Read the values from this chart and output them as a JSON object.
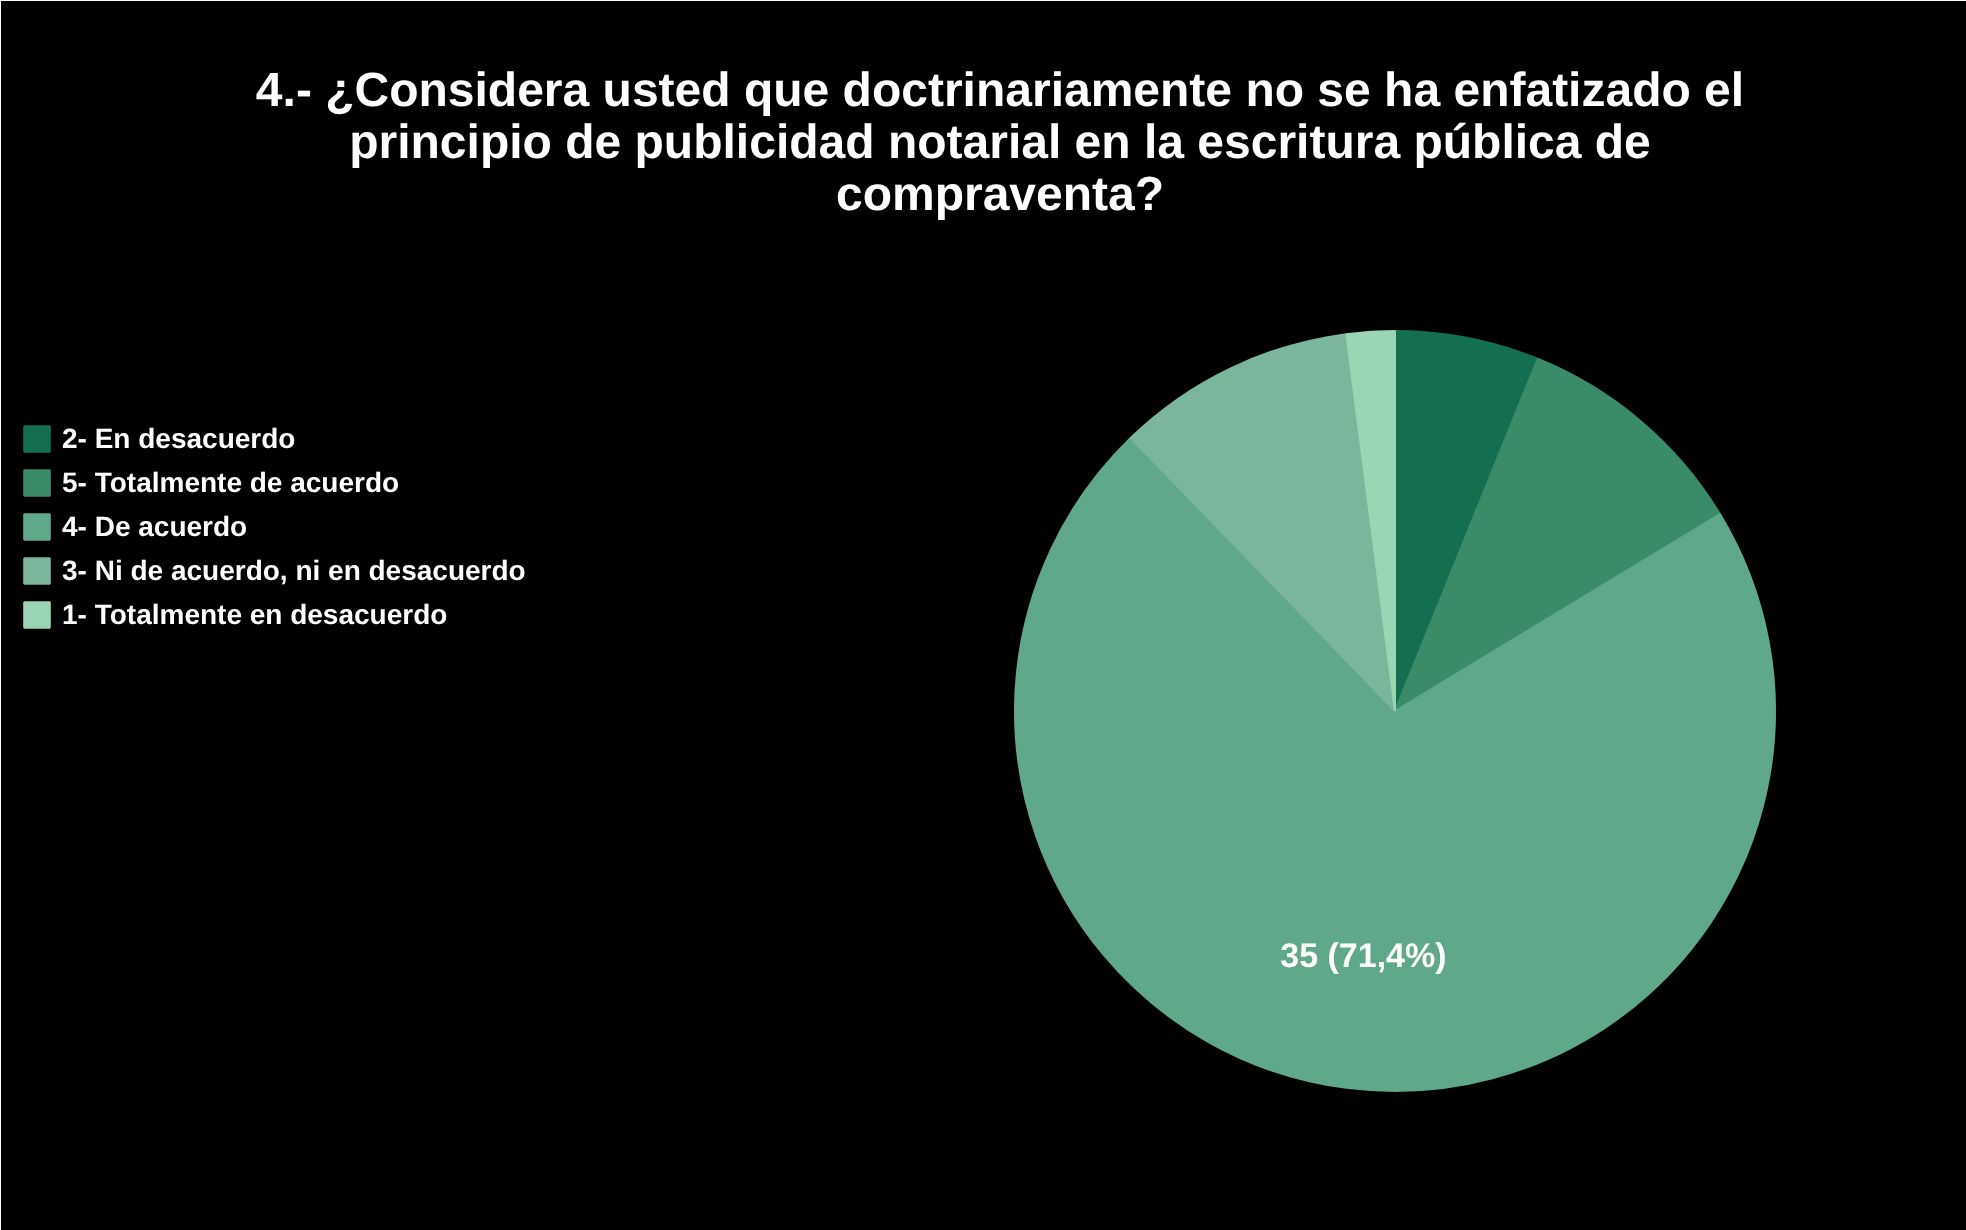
{
  "chart_data": {
    "type": "pie",
    "title": "4.- ¿Considera usted que doctrinariamente no se ha enfatizado el principio de publicidad notarial en la escritura pública de compraventa?",
    "categories": [
      "2- En desacuerdo",
      "5- Totalmente de acuerdo",
      "4- De acuerdo",
      "3- Ni de acuerdo, ni en desacuerdo",
      "1- Totalmente en desacuerdo"
    ],
    "values": [
      3,
      5,
      35,
      5,
      1
    ],
    "colors": [
      "#136f50",
      "#3a8c69",
      "#5fa88a",
      "#7bb69c",
      "#9ad6b3"
    ],
    "value_labels": [
      null,
      null,
      "35 (71,4%)",
      null,
      null
    ],
    "legend": "top left"
  }
}
